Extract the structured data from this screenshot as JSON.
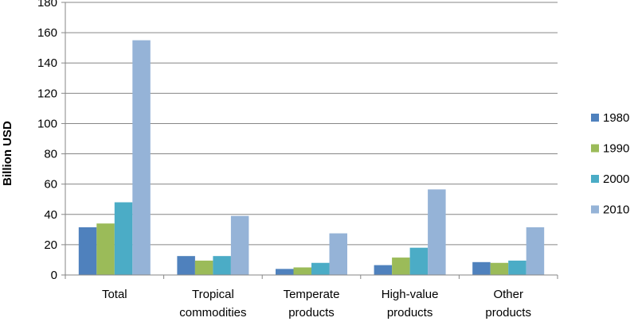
{
  "chart_data": {
    "type": "bar",
    "title": "",
    "xlabel": "",
    "ylabel": "Billion USD",
    "ylim": [
      0,
      180
    ],
    "yticks": [
      0,
      20,
      40,
      60,
      80,
      100,
      120,
      140,
      160,
      180
    ],
    "grid": true,
    "legend_position": "right",
    "categories": [
      [
        "Total"
      ],
      [
        "Tropical",
        "commodities"
      ],
      [
        "Temperate",
        "products"
      ],
      [
        "High-value",
        "products"
      ],
      [
        "Other",
        "products"
      ]
    ],
    "series": [
      {
        "name": "1980",
        "color": "#4F81BD",
        "values": [
          31.5,
          12.5,
          4.0,
          6.5,
          8.5
        ]
      },
      {
        "name": "1990",
        "color": "#9BBB59",
        "values": [
          34.0,
          9.5,
          5.0,
          11.5,
          8.0
        ]
      },
      {
        "name": "2000",
        "color": "#4BACC6",
        "values": [
          48.0,
          12.5,
          8.0,
          18.0,
          9.5
        ]
      },
      {
        "name": "2010",
        "color": "#95B3D7",
        "values": [
          155.0,
          39.0,
          27.5,
          56.5,
          31.5
        ]
      }
    ]
  }
}
